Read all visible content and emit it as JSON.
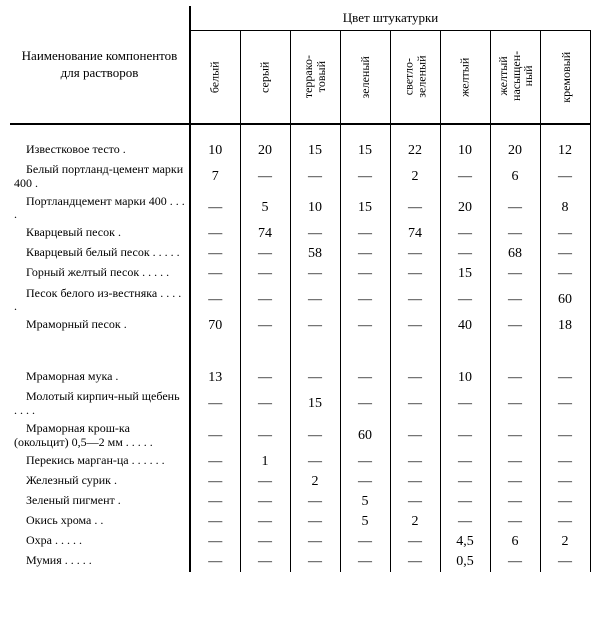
{
  "dash": "—",
  "header": {
    "rowTitle": "Наименование компонентов для растворов",
    "superTitle": "Цвет штукатурки",
    "columns": [
      "белый",
      "серый",
      "террако-\nтовый",
      "зеленый",
      "светло-\nзеленый",
      "желтый",
      "желтый\nнасыщен-\nный",
      "кремовый"
    ]
  },
  "sections": [
    {
      "rows": [
        {
          "label": "Известковое тесто .",
          "cells": [
            "10",
            "20",
            "15",
            "15",
            "22",
            "10",
            "20",
            "12"
          ]
        },
        {
          "label": "Белый портланд-цемент марки 400 .",
          "cells": [
            "7",
            "—",
            "—",
            "—",
            "2",
            "—",
            "6",
            "—"
          ]
        },
        {
          "label": "Портландцемент марки 400 . . . .",
          "cells": [
            "—",
            "5",
            "10",
            "15",
            "—",
            "20",
            "—",
            "8"
          ]
        },
        {
          "label": "Кварцевый песок .",
          "cells": [
            "—",
            "74",
            "—",
            "—",
            "74",
            "—",
            "—",
            "—"
          ]
        },
        {
          "label": "Кварцевый белый песок . . . . .",
          "cells": [
            "—",
            "—",
            "58",
            "—",
            "—",
            "—",
            "68",
            "—"
          ]
        },
        {
          "label": "Горный желтый песок . . . . .",
          "cells": [
            "—",
            "—",
            "—",
            "—",
            "—",
            "15",
            "—",
            "—"
          ]
        },
        {
          "label": "Песок белого из-вестняка . . . . .",
          "cells": [
            "—",
            "—",
            "—",
            "—",
            "—",
            "—",
            "—",
            "60"
          ]
        },
        {
          "label": "Мраморный песок .",
          "cells": [
            "70",
            "—",
            "—",
            "—",
            "—",
            "40",
            "—",
            "18"
          ]
        }
      ]
    },
    {
      "rows": [
        {
          "label": "Мраморная мука .",
          "cells": [
            "13",
            "—",
            "—",
            "—",
            "—",
            "10",
            "—",
            "—"
          ]
        },
        {
          "label": "Молотый кирпич-ный щебень . . . .",
          "cells": [
            "—",
            "—",
            "15",
            "—",
            "—",
            "—",
            "—",
            "—"
          ]
        },
        {
          "label": "Мраморная крош-ка (окольцит) 0,5—2 мм . . . . .",
          "cells": [
            "—",
            "—",
            "—",
            "60",
            "—",
            "—",
            "—",
            "—"
          ]
        },
        {
          "label": "Перекись марган-ца . . . . . .",
          "cells": [
            "—",
            "1",
            "—",
            "—",
            "—",
            "—",
            "—",
            "—"
          ]
        },
        {
          "label": "Железный сурик .",
          "cells": [
            "—",
            "—",
            "2",
            "—",
            "—",
            "—",
            "—",
            "—"
          ]
        },
        {
          "label": "Зеленый пигмент .",
          "cells": [
            "—",
            "—",
            "—",
            "5",
            "—",
            "—",
            "—",
            "—"
          ]
        },
        {
          "label": "Окись хрома . .",
          "cells": [
            "—",
            "—",
            "—",
            "5",
            "2",
            "—",
            "—",
            "—"
          ]
        },
        {
          "label": "Охра . . . . .",
          "cells": [
            "—",
            "—",
            "—",
            "—",
            "—",
            "4,5",
            "6",
            "2"
          ]
        },
        {
          "label": "Мумия . . . . .",
          "cells": [
            "—",
            "—",
            "—",
            "—",
            "—",
            "0,5",
            "—",
            "—"
          ]
        }
      ]
    }
  ]
}
